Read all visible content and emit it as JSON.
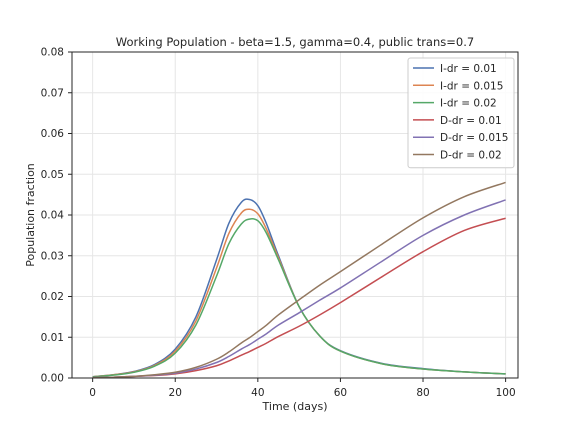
{
  "chart_data": {
    "type": "line",
    "title": "Working Population - beta=1.5, gamma=0.4, public trans=0.7",
    "xlabel": "Time (days)",
    "ylabel": "Population fraction",
    "xlim": [
      -5,
      103
    ],
    "ylim": [
      0,
      0.08
    ],
    "x_ticks": [
      0,
      20,
      40,
      60,
      80,
      100
    ],
    "y_ticks": [
      0.0,
      0.01,
      0.02,
      0.03,
      0.04,
      0.05,
      0.06,
      0.07,
      0.08
    ],
    "grid": true,
    "legend_position": "top-right",
    "x": [
      0,
      5,
      10,
      15,
      20,
      25,
      30,
      33,
      36,
      38,
      40,
      42,
      45,
      50,
      55,
      60,
      70,
      80,
      90,
      100
    ],
    "series": [
      {
        "name": "I-dr = 0.01",
        "color": "#4c72b0",
        "values": [
          0.0003,
          0.0008,
          0.0016,
          0.0033,
          0.0071,
          0.015,
          0.029,
          0.038,
          0.0431,
          0.0438,
          0.0423,
          0.0381,
          0.03,
          0.0175,
          0.0103,
          0.0067,
          0.0036,
          0.0023,
          0.0015,
          0.001
        ]
      },
      {
        "name": "I-dr = 0.015",
        "color": "#dd8452",
        "values": [
          0.0003,
          0.0008,
          0.0015,
          0.0031,
          0.0066,
          0.014,
          0.027,
          0.0355,
          0.0405,
          0.0414,
          0.0403,
          0.0367,
          0.0295,
          0.0175,
          0.0103,
          0.0066,
          0.0035,
          0.0022,
          0.0015,
          0.001
        ]
      },
      {
        "name": "I-dr = 0.02",
        "color": "#55a868",
        "values": [
          0.0003,
          0.0007,
          0.0014,
          0.0029,
          0.0061,
          0.013,
          0.025,
          0.033,
          0.0378,
          0.039,
          0.0386,
          0.0357,
          0.029,
          0.0175,
          0.0103,
          0.0066,
          0.0035,
          0.0022,
          0.0015,
          0.001
        ]
      },
      {
        "name": "D-dr = 0.01",
        "color": "#c44e52",
        "values": [
          0.0001,
          0.0002,
          0.0004,
          0.0006,
          0.001,
          0.0018,
          0.003,
          0.0042,
          0.0056,
          0.0065,
          0.0075,
          0.0085,
          0.0102,
          0.0127,
          0.0155,
          0.0185,
          0.0248,
          0.031,
          0.0362,
          0.0392
        ]
      },
      {
        "name": "D-dr = 0.015",
        "color": "#8172b3",
        "values": [
          0.0001,
          0.0002,
          0.0004,
          0.0007,
          0.0012,
          0.0022,
          0.0038,
          0.0053,
          0.0071,
          0.0082,
          0.0095,
          0.0108,
          0.013,
          0.016,
          0.0191,
          0.0221,
          0.0286,
          0.035,
          0.04,
          0.0437
        ]
      },
      {
        "name": "D-dr = 0.02",
        "color": "#937860",
        "values": [
          0.0001,
          0.0002,
          0.0004,
          0.0008,
          0.0014,
          0.0026,
          0.0046,
          0.0064,
          0.0086,
          0.0099,
          0.0114,
          0.0129,
          0.0155,
          0.0192,
          0.0228,
          0.0261,
          0.0328,
          0.0393,
          0.0445,
          0.048
        ]
      }
    ]
  }
}
